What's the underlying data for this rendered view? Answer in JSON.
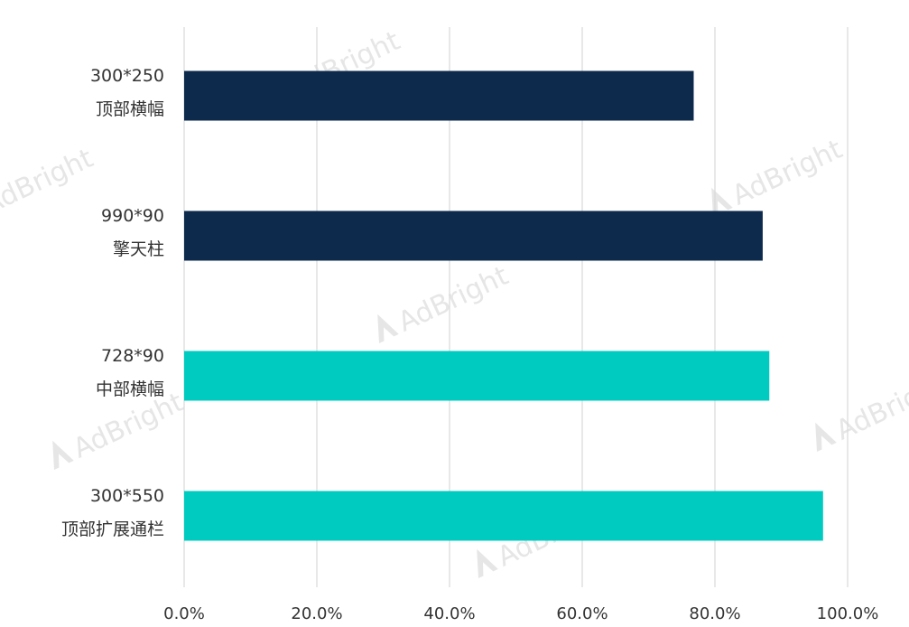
{
  "chart_data": {
    "type": "bar",
    "orientation": "horizontal",
    "categories": [
      [
        "300*250",
        "顶部横幅"
      ],
      [
        "990*90",
        "擎天柱"
      ],
      [
        "728*90",
        "中部横幅"
      ],
      [
        "300*550",
        "顶部扩展通栏"
      ]
    ],
    "values": [
      76.8,
      87.2,
      88.2,
      96.3
    ],
    "bar_colors": [
      "#0d2a4d",
      "#0d2a4d",
      "#00cbc1",
      "#00cbc1"
    ],
    "xlim": [
      0,
      100
    ],
    "xticks": [
      0,
      20,
      40,
      60,
      80,
      100
    ],
    "xtick_labels": [
      "0.0%",
      "20.0%",
      "40.0%",
      "60.0%",
      "80.0%",
      "100.0%"
    ],
    "grid": true,
    "title": "",
    "xlabel": "",
    "ylabel": ""
  },
  "watermark": "AdBright"
}
